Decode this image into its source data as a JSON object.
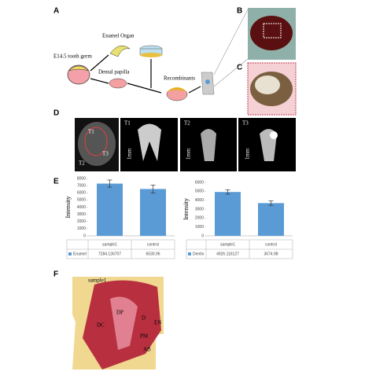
{
  "panels": {
    "a": "A",
    "b": "B",
    "c": "C",
    "d": "D",
    "e": "E",
    "f": "F"
  },
  "diagram": {
    "tooth_germ": "E14.5 tooth germ",
    "enamel_organ": "Enamel Organ",
    "dental_papilla": "Dental papilla",
    "recombinants": "Recombinants"
  },
  "ct_images": {
    "labels": [
      "T1",
      "T2",
      "T3"
    ],
    "scale": "1mm"
  },
  "histology": {
    "sample": "sample1",
    "labels": [
      "DC",
      "DP",
      "D",
      "EN",
      "PM",
      "AB"
    ]
  },
  "chart_data": [
    {
      "type": "bar",
      "y_label": "Intensity",
      "categories": [
        "sample1",
        "control"
      ],
      "series": [
        {
          "name": "Enamel",
          "color": "#5b9bd5",
          "values": [
            7284.136707,
            6530.96
          ],
          "errors": [
            500,
            550
          ]
        }
      ],
      "ylim": [
        0,
        8000
      ],
      "yticks": [
        0,
        1000,
        2000,
        3000,
        4000,
        5000,
        6000,
        7000,
        8000
      ]
    },
    {
      "type": "bar",
      "y_label": "Intensity",
      "categories": [
        "sample1",
        "control"
      ],
      "series": [
        {
          "name": "Dentin",
          "color": "#5b9bd5",
          "values": [
            4926.116127,
            3674.98
          ],
          "errors": [
            250,
            250
          ]
        }
      ],
      "ylim": [
        0,
        6000
      ],
      "yticks": [
        0,
        1000,
        2000,
        3000,
        4000,
        5000,
        6000
      ]
    }
  ]
}
